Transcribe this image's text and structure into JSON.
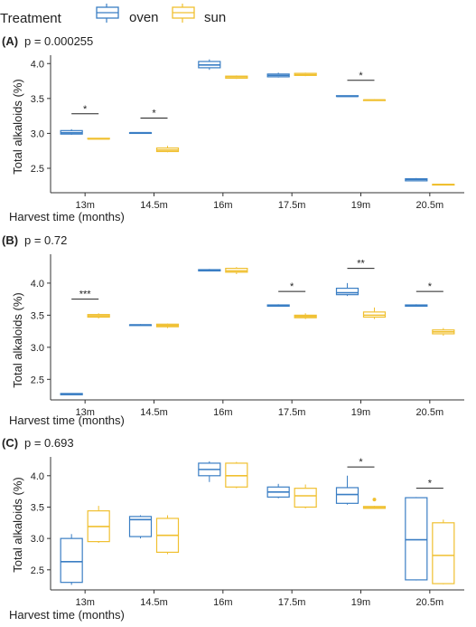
{
  "legend": {
    "title": "Treatment",
    "items": [
      {
        "name": "oven",
        "color": "#3a7ec4"
      },
      {
        "name": "sun",
        "color": "#f0c030"
      }
    ]
  },
  "chart_data": [
    {
      "type": "boxplot",
      "panel": "(A)",
      "pvalue": "p = 0.000255",
      "xlabel": "Harvest time (months)",
      "ylabel": "Total alkaloids (%)",
      "categories": [
        "13m",
        "14.5m",
        "16m",
        "17.5m",
        "19m",
        "20.5m"
      ],
      "ylim": [
        2.15,
        4.12
      ],
      "yticks": [
        2.5,
        3.0,
        3.5,
        4.0
      ],
      "ytick_labels": [
        "2.5",
        "3.0",
        "3.5",
        "4.0"
      ],
      "series": [
        {
          "name": "oven",
          "boxes": [
            {
              "min": 2.98,
              "q1": 2.99,
              "median": 3.01,
              "q3": 3.04,
              "max": 3.06
            },
            {
              "min": 3.01,
              "q1": 3.01,
              "median": 3.01,
              "q3": 3.01,
              "max": 3.01
            },
            {
              "min": 3.91,
              "q1": 3.94,
              "median": 3.98,
              "q3": 4.03,
              "max": 4.06
            },
            {
              "min": 3.8,
              "q1": 3.81,
              "median": 3.83,
              "q3": 3.85,
              "max": 3.87
            },
            {
              "min": 3.53,
              "q1": 3.53,
              "median": 3.53,
              "q3": 3.54,
              "max": 3.54
            },
            {
              "min": 2.32,
              "q1": 2.32,
              "median": 2.34,
              "q3": 2.35,
              "max": 2.36
            }
          ]
        },
        {
          "name": "sun",
          "boxes": [
            {
              "min": 2.92,
              "q1": 2.92,
              "median": 2.92,
              "q3": 2.93,
              "max": 2.93
            },
            {
              "min": 2.73,
              "q1": 2.74,
              "median": 2.76,
              "q3": 2.79,
              "max": 2.82
            },
            {
              "min": 3.78,
              "q1": 3.79,
              "median": 3.81,
              "q3": 3.82,
              "max": 3.83
            },
            {
              "min": 3.82,
              "q1": 3.83,
              "median": 3.84,
              "q3": 3.86,
              "max": 3.87
            },
            {
              "min": 3.47,
              "q1": 3.48,
              "median": 3.48,
              "q3": 3.48,
              "max": 3.49
            },
            {
              "min": 2.26,
              "q1": 2.27,
              "median": 2.27,
              "q3": 2.27,
              "max": 2.28
            }
          ]
        }
      ],
      "outliers": [],
      "significance": [
        {
          "category": "13m",
          "y": 3.28,
          "label": "*"
        },
        {
          "category": "14.5m",
          "y": 3.22,
          "label": "*"
        },
        {
          "category": "19m",
          "y": 3.76,
          "label": "*"
        }
      ]
    },
    {
      "type": "boxplot",
      "panel": "(B)",
      "pvalue": "p = 0.72",
      "xlabel": "Harvest time (months)",
      "ylabel": "Total alkaloids (%)",
      "categories": [
        "13m",
        "14.5m",
        "16m",
        "17.5m",
        "19m",
        "20.5m"
      ],
      "ylim": [
        2.18,
        4.45
      ],
      "yticks": [
        2.5,
        3.0,
        3.5,
        4.0
      ],
      "ytick_labels": [
        "2.5",
        "3.0",
        "3.5",
        "4.0"
      ],
      "series": [
        {
          "name": "oven",
          "boxes": [
            {
              "min": 2.26,
              "q1": 2.26,
              "median": 2.27,
              "q3": 2.28,
              "max": 2.28
            },
            {
              "min": 3.34,
              "q1": 3.34,
              "median": 3.35,
              "q3": 3.35,
              "max": 3.36
            },
            {
              "min": 4.19,
              "q1": 4.19,
              "median": 4.2,
              "q3": 4.21,
              "max": 4.22
            },
            {
              "min": 3.64,
              "q1": 3.64,
              "median": 3.65,
              "q3": 3.66,
              "max": 3.67
            },
            {
              "min": 3.8,
              "q1": 3.82,
              "median": 3.85,
              "q3": 3.92,
              "max": 4.0
            },
            {
              "min": 3.64,
              "q1": 3.64,
              "median": 3.65,
              "q3": 3.66,
              "max": 3.67
            }
          ]
        },
        {
          "name": "sun",
          "boxes": [
            {
              "min": 3.45,
              "q1": 3.47,
              "median": 3.49,
              "q3": 3.51,
              "max": 3.53
            },
            {
              "min": 3.3,
              "q1": 3.32,
              "median": 3.34,
              "q3": 3.36,
              "max": 3.37
            },
            {
              "min": 4.14,
              "q1": 4.17,
              "median": 4.19,
              "q3": 4.23,
              "max": 4.25
            },
            {
              "min": 3.44,
              "q1": 3.46,
              "median": 3.48,
              "q3": 3.5,
              "max": 3.53
            },
            {
              "min": 3.44,
              "q1": 3.47,
              "median": 3.5,
              "q3": 3.55,
              "max": 3.62
            },
            {
              "min": 3.18,
              "q1": 3.21,
              "median": 3.24,
              "q3": 3.27,
              "max": 3.3
            }
          ]
        }
      ],
      "outliers": [],
      "significance": [
        {
          "category": "13m",
          "y": 3.75,
          "label": "***"
        },
        {
          "category": "17.5m",
          "y": 3.87,
          "label": "*"
        },
        {
          "category": "19m",
          "y": 4.23,
          "label": "**"
        },
        {
          "category": "20.5m",
          "y": 3.87,
          "label": "*"
        }
      ]
    },
    {
      "type": "boxplot",
      "panel": "(C)",
      "pvalue": "p = 0.693",
      "xlabel": "Harvest time (months)",
      "ylabel": "Total alkaloids (%)",
      "categories": [
        "13m",
        "14.5m",
        "16m",
        "17.5m",
        "19m",
        "20.5m"
      ],
      "ylim": [
        2.18,
        4.3
      ],
      "yticks": [
        2.5,
        3.0,
        3.5,
        4.0
      ],
      "ytick_labels": [
        "2.5",
        "3.0",
        "3.5",
        "4.0"
      ],
      "series": [
        {
          "name": "oven",
          "boxes": [
            {
              "min": 2.26,
              "q1": 2.3,
              "median": 2.63,
              "q3": 3.0,
              "max": 3.07
            },
            {
              "min": 3.0,
              "q1": 3.03,
              "median": 3.3,
              "q3": 3.35,
              "max": 3.37
            },
            {
              "min": 3.9,
              "q1": 4.0,
              "median": 4.1,
              "q3": 4.2,
              "max": 4.23
            },
            {
              "min": 3.64,
              "q1": 3.66,
              "median": 3.74,
              "q3": 3.82,
              "max": 3.87
            },
            {
              "min": 3.54,
              "q1": 3.56,
              "median": 3.7,
              "q3": 3.81,
              "max": 4.0
            },
            {
              "min": 2.33,
              "q1": 2.34,
              "median": 2.98,
              "q3": 3.65,
              "max": 3.66
            }
          ]
        },
        {
          "name": "sun",
          "boxes": [
            {
              "min": 2.93,
              "q1": 2.95,
              "median": 3.19,
              "q3": 3.44,
              "max": 3.52
            },
            {
              "min": 2.75,
              "q1": 2.78,
              "median": 3.05,
              "q3": 3.32,
              "max": 3.37
            },
            {
              "min": 3.8,
              "q1": 3.82,
              "median": 4.0,
              "q3": 4.2,
              "max": 4.22
            },
            {
              "min": 3.48,
              "q1": 3.5,
              "median": 3.68,
              "q3": 3.8,
              "max": 3.86
            },
            {
              "min": 3.47,
              "q1": 3.48,
              "median": 3.49,
              "q3": 3.51,
              "max": 3.52
            },
            {
              "min": 2.27,
              "q1": 2.28,
              "median": 2.73,
              "q3": 3.25,
              "max": 3.3
            }
          ]
        }
      ],
      "outliers": [
        {
          "series": "sun",
          "category": "19m",
          "value": 3.62
        }
      ],
      "significance": [
        {
          "category": "19m",
          "y": 4.14,
          "label": "*"
        },
        {
          "category": "20.5m",
          "y": 3.8,
          "label": "*"
        }
      ]
    }
  ]
}
